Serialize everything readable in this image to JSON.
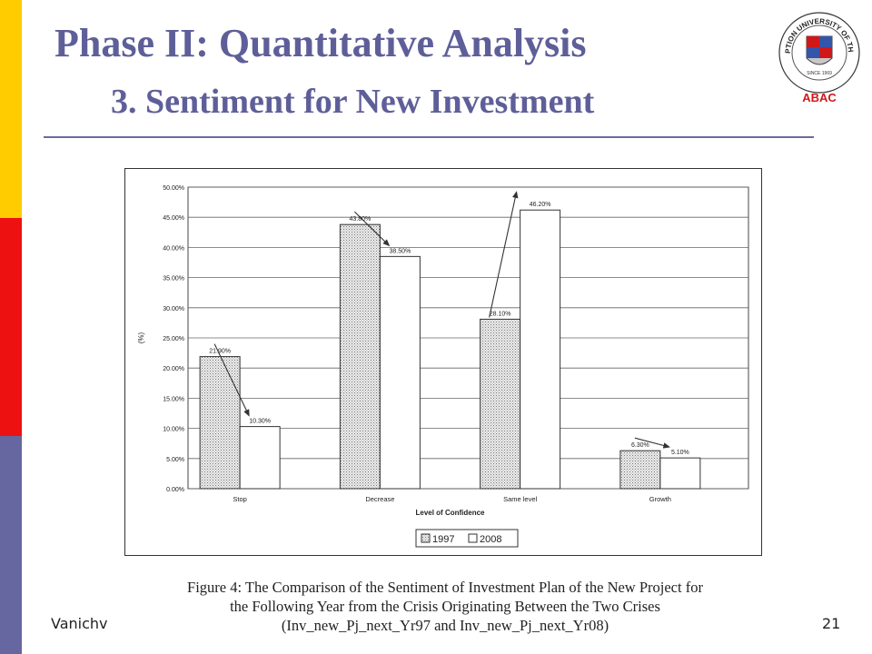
{
  "slide": {
    "title_line1": "Phase II: Quantitative Analysis",
    "title_line2": "3. Sentiment for New Investment",
    "logo": {
      "top_text": "ASSUMPTION UNIVERSITY OF THAILAND",
      "since_text": "SINCE 1969",
      "label": "ABAC"
    },
    "footer_left": "Vanichv",
    "page_number": "21",
    "caption": [
      "Figure 4: The Comparison of the Sentiment of Investment Plan of the New Project for",
      "the Following Year from the Crisis Originating Between the Two Crises",
      "(Inv_new_Pj_next_Yr97 and Inv_new_Pj_next_Yr08)"
    ],
    "colors": {
      "bar_yellow": "#ffcc00",
      "bar_red": "#ee1111",
      "bar_slate": "#6666a0",
      "title": "#5e5f99",
      "logo_red": "#d01818"
    }
  },
  "chart_data": {
    "type": "bar",
    "categories": [
      "Stop",
      "Decrease",
      "Same level",
      "Growth"
    ],
    "series": [
      {
        "name": "1997",
        "values": [
          21.9,
          43.8,
          28.1,
          6.3
        ],
        "labels": [
          "21.90%",
          "43.80%",
          "28.10%",
          "6.30%"
        ],
        "fill": "dotted"
      },
      {
        "name": "2008",
        "values": [
          10.3,
          38.5,
          46.2,
          5.1
        ],
        "labels": [
          "10.30%",
          "38.50%",
          "46.20%",
          "5.10%"
        ],
        "fill": "white"
      }
    ],
    "y_ticks": [
      "0.00%",
      "5.00%",
      "10.00%",
      "15.00%",
      "20.00%",
      "25.00%",
      "30.00%",
      "35.00%",
      "40.00%",
      "45.00%",
      "50.00%"
    ],
    "ylim": [
      0,
      50
    ],
    "ylabel": "(%)",
    "xlabel": "Level of Confidence",
    "grid": true,
    "legend_placement": "bottom"
  }
}
